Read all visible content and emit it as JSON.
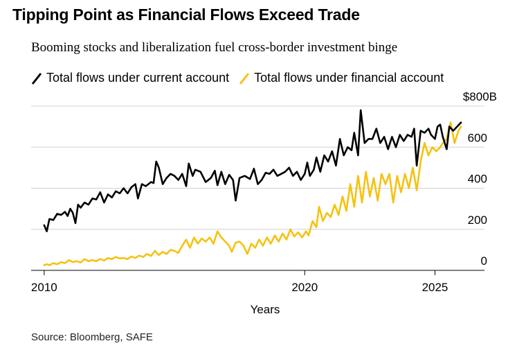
{
  "chart_data": {
    "type": "line",
    "title": "Tipping Point as Financial Flows Exceed Trade",
    "subtitle": "Booming stocks and liberalization fuel cross-border investment binge",
    "xlabel": "Years",
    "ylabel": "",
    "xlim": [
      2009.5,
      2026.9
    ],
    "ylim": [
      0,
      800
    ],
    "x_ticks": [
      2010,
      2020,
      2025
    ],
    "x_tick_labels": [
      "2010",
      "2020",
      "2025"
    ],
    "y_ticks": [
      0,
      200,
      400,
      600,
      800
    ],
    "y_tick_labels": [
      "0",
      "200",
      "400",
      "600",
      "$800B"
    ],
    "grid": true,
    "legend_position": "top",
    "series": [
      {
        "name": "Total flows under current account",
        "color": "#000000",
        "points": [
          [
            2010.0,
            220
          ],
          [
            2010.1,
            190
          ],
          [
            2010.2,
            250
          ],
          [
            2010.35,
            245
          ],
          [
            2010.5,
            275
          ],
          [
            2010.65,
            270
          ],
          [
            2010.8,
            285
          ],
          [
            2010.9,
            265
          ],
          [
            2011.0,
            300
          ],
          [
            2011.1,
            280
          ],
          [
            2011.2,
            230
          ],
          [
            2011.3,
            320
          ],
          [
            2011.4,
            305
          ],
          [
            2011.55,
            330
          ],
          [
            2011.7,
            320
          ],
          [
            2011.85,
            350
          ],
          [
            2012.0,
            345
          ],
          [
            2012.15,
            380
          ],
          [
            2012.3,
            330
          ],
          [
            2012.45,
            370
          ],
          [
            2012.6,
            355
          ],
          [
            2012.75,
            385
          ],
          [
            2012.9,
            375
          ],
          [
            2013.05,
            400
          ],
          [
            2013.2,
            375
          ],
          [
            2013.35,
            405
          ],
          [
            2013.5,
            420
          ],
          [
            2013.6,
            350
          ],
          [
            2013.75,
            420
          ],
          [
            2013.9,
            410
          ],
          [
            2014.0,
            420
          ],
          [
            2014.1,
            430
          ],
          [
            2014.2,
            425
          ],
          [
            2014.3,
            530
          ],
          [
            2014.4,
            500
          ],
          [
            2014.55,
            420
          ],
          [
            2014.7,
            450
          ],
          [
            2014.85,
            470
          ],
          [
            2015.0,
            460
          ],
          [
            2015.15,
            440
          ],
          [
            2015.3,
            470
          ],
          [
            2015.45,
            410
          ],
          [
            2015.55,
            520
          ],
          [
            2015.7,
            460
          ],
          [
            2015.8,
            490
          ],
          [
            2016.0,
            480
          ],
          [
            2016.2,
            430
          ],
          [
            2016.4,
            450
          ],
          [
            2016.55,
            485
          ],
          [
            2016.65,
            415
          ],
          [
            2016.8,
            480
          ],
          [
            2016.95,
            420
          ],
          [
            2017.1,
            465
          ],
          [
            2017.25,
            440
          ],
          [
            2017.35,
            340
          ],
          [
            2017.5,
            450
          ],
          [
            2017.7,
            460
          ],
          [
            2017.9,
            445
          ],
          [
            2018.05,
            495
          ],
          [
            2018.2,
            420
          ],
          [
            2018.35,
            440
          ],
          [
            2018.5,
            475
          ],
          [
            2018.65,
            470
          ],
          [
            2018.8,
            490
          ],
          [
            2018.95,
            460
          ],
          [
            2019.1,
            470
          ],
          [
            2019.25,
            480
          ],
          [
            2019.4,
            500
          ],
          [
            2019.55,
            460
          ],
          [
            2019.7,
            480
          ],
          [
            2019.85,
            440
          ],
          [
            2020.0,
            470
          ],
          [
            2020.1,
            525
          ],
          [
            2020.2,
            460
          ],
          [
            2020.35,
            490
          ],
          [
            2020.45,
            550
          ],
          [
            2020.6,
            480
          ],
          [
            2020.75,
            560
          ],
          [
            2020.9,
            530
          ],
          [
            2021.05,
            580
          ],
          [
            2021.2,
            510
          ],
          [
            2021.35,
            640
          ],
          [
            2021.5,
            560
          ],
          [
            2021.65,
            600
          ],
          [
            2021.8,
            585
          ],
          [
            2021.9,
            670
          ],
          [
            2022.05,
            560
          ],
          [
            2022.15,
            780
          ],
          [
            2022.3,
            620
          ],
          [
            2022.45,
            640
          ],
          [
            2022.6,
            640
          ],
          [
            2022.75,
            690
          ],
          [
            2022.9,
            620
          ],
          [
            2023.05,
            650
          ],
          [
            2023.2,
            590
          ],
          [
            2023.35,
            650
          ],
          [
            2023.5,
            600
          ],
          [
            2023.65,
            660
          ],
          [
            2023.8,
            630
          ],
          [
            2023.95,
            660
          ],
          [
            2024.1,
            650
          ],
          [
            2024.2,
            690
          ],
          [
            2024.3,
            510
          ],
          [
            2024.45,
            680
          ],
          [
            2024.6,
            670
          ],
          [
            2024.75,
            690
          ],
          [
            2024.85,
            660
          ],
          [
            2025.0,
            640
          ],
          [
            2025.1,
            700
          ],
          [
            2025.2,
            710
          ],
          [
            2025.3,
            650
          ],
          [
            2025.45,
            590
          ],
          [
            2025.55,
            700
          ],
          [
            2025.7,
            680
          ],
          [
            2025.85,
            700
          ],
          [
            2026.0,
            720
          ]
        ]
      },
      {
        "name": "Total flows under financial account",
        "color": "#f5c211",
        "points": [
          [
            2010.0,
            25
          ],
          [
            2010.1,
            30
          ],
          [
            2010.2,
            25
          ],
          [
            2010.35,
            35
          ],
          [
            2010.5,
            30
          ],
          [
            2010.65,
            40
          ],
          [
            2010.8,
            35
          ],
          [
            2010.95,
            50
          ],
          [
            2011.1,
            40
          ],
          [
            2011.25,
            45
          ],
          [
            2011.4,
            38
          ],
          [
            2011.55,
            55
          ],
          [
            2011.7,
            45
          ],
          [
            2011.85,
            50
          ],
          [
            2012.0,
            45
          ],
          [
            2012.15,
            55
          ],
          [
            2012.3,
            48
          ],
          [
            2012.45,
            60
          ],
          [
            2012.6,
            55
          ],
          [
            2012.75,
            65
          ],
          [
            2012.9,
            58
          ],
          [
            2013.05,
            60
          ],
          [
            2013.2,
            55
          ],
          [
            2013.35,
            68
          ],
          [
            2013.5,
            60
          ],
          [
            2013.65,
            72
          ],
          [
            2013.8,
            65
          ],
          [
            2013.95,
            80
          ],
          [
            2014.1,
            70
          ],
          [
            2014.25,
            95
          ],
          [
            2014.4,
            75
          ],
          [
            2014.55,
            90
          ],
          [
            2014.7,
            80
          ],
          [
            2014.85,
            100
          ],
          [
            2015.0,
            95
          ],
          [
            2015.15,
            85
          ],
          [
            2015.3,
            120
          ],
          [
            2015.45,
            150
          ],
          [
            2015.6,
            110
          ],
          [
            2015.75,
            160
          ],
          [
            2015.9,
            130
          ],
          [
            2016.05,
            155
          ],
          [
            2016.2,
            140
          ],
          [
            2016.35,
            160
          ],
          [
            2016.5,
            130
          ],
          [
            2016.65,
            190
          ],
          [
            2016.8,
            160
          ],
          [
            2016.95,
            140
          ],
          [
            2017.1,
            120
          ],
          [
            2017.2,
            90
          ],
          [
            2017.35,
            135
          ],
          [
            2017.5,
            140
          ],
          [
            2017.65,
            120
          ],
          [
            2017.8,
            80
          ],
          [
            2017.95,
            130
          ],
          [
            2018.1,
            110
          ],
          [
            2018.25,
            150
          ],
          [
            2018.4,
            120
          ],
          [
            2018.55,
            160
          ],
          [
            2018.7,
            130
          ],
          [
            2018.85,
            170
          ],
          [
            2019.0,
            140
          ],
          [
            2019.15,
            180
          ],
          [
            2019.3,
            150
          ],
          [
            2019.45,
            200
          ],
          [
            2019.6,
            165
          ],
          [
            2019.75,
            185
          ],
          [
            2019.9,
            160
          ],
          [
            2020.05,
            190
          ],
          [
            2020.15,
            170
          ],
          [
            2020.3,
            240
          ],
          [
            2020.45,
            210
          ],
          [
            2020.55,
            310
          ],
          [
            2020.7,
            240
          ],
          [
            2020.85,
            280
          ],
          [
            2021.0,
            260
          ],
          [
            2021.15,
            320
          ],
          [
            2021.3,
            270
          ],
          [
            2021.45,
            360
          ],
          [
            2021.6,
            290
          ],
          [
            2021.75,
            420
          ],
          [
            2021.9,
            310
          ],
          [
            2022.05,
            460
          ],
          [
            2022.2,
            330
          ],
          [
            2022.35,
            480
          ],
          [
            2022.5,
            360
          ],
          [
            2022.65,
            450
          ],
          [
            2022.8,
            340
          ],
          [
            2022.95,
            470
          ],
          [
            2023.1,
            420
          ],
          [
            2023.25,
            470
          ],
          [
            2023.4,
            330
          ],
          [
            2023.55,
            460
          ],
          [
            2023.7,
            380
          ],
          [
            2023.85,
            470
          ],
          [
            2024.0,
            400
          ],
          [
            2024.15,
            500
          ],
          [
            2024.3,
            390
          ],
          [
            2024.45,
            530
          ],
          [
            2024.6,
            620
          ],
          [
            2024.75,
            560
          ],
          [
            2024.9,
            600
          ],
          [
            2025.05,
            580
          ],
          [
            2025.2,
            600
          ],
          [
            2025.3,
            620
          ],
          [
            2025.45,
            640
          ],
          [
            2025.6,
            720
          ],
          [
            2025.75,
            620
          ],
          [
            2025.9,
            680
          ],
          [
            2026.0,
            700
          ]
        ]
      }
    ]
  },
  "source": "Source: Bloomberg, SAFE",
  "colors": {
    "current": "#000000",
    "financial": "#f5c211",
    "grid": "#d0d0d0"
  }
}
